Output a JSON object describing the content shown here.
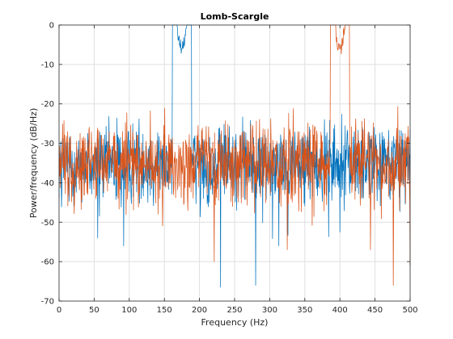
{
  "chart_data": {
    "type": "line",
    "title": "Lomb-Scargle",
    "xlabel": "Frequency (Hz)",
    "ylabel": "Power/frequency (dB/Hz)",
    "xlim": [
      0,
      500
    ],
    "ylim": [
      -70,
      0
    ],
    "xticks": [
      0,
      50,
      100,
      150,
      200,
      250,
      300,
      350,
      400,
      450,
      500
    ],
    "yticks": [
      0,
      -10,
      -20,
      -30,
      -40,
      -50,
      -60,
      -70
    ],
    "grid": true,
    "legend": "none",
    "series": [
      {
        "color": "#0072BD",
        "peaks": [
          {
            "x": 175,
            "y": -6
          }
        ],
        "dips": [
          {
            "x": 55,
            "y": -54
          },
          {
            "x": 92,
            "y": -56
          },
          {
            "x": 230,
            "y": -66.5
          },
          {
            "x": 280,
            "y": -66
          },
          {
            "x": 313,
            "y": -56
          }
        ],
        "noise_floor_mean": -35,
        "noise_range": [
          -46,
          -25
        ]
      },
      {
        "color": "#D95319",
        "peaks": [
          {
            "x": 400,
            "y": -6
          }
        ],
        "dips": [
          {
            "x": 221,
            "y": -60
          },
          {
            "x": 325,
            "y": -57
          },
          {
            "x": 476,
            "y": -66
          },
          {
            "x": 500,
            "y": -61
          }
        ],
        "noise_floor_mean": -35,
        "noise_range": [
          -47,
          -25
        ]
      }
    ]
  }
}
